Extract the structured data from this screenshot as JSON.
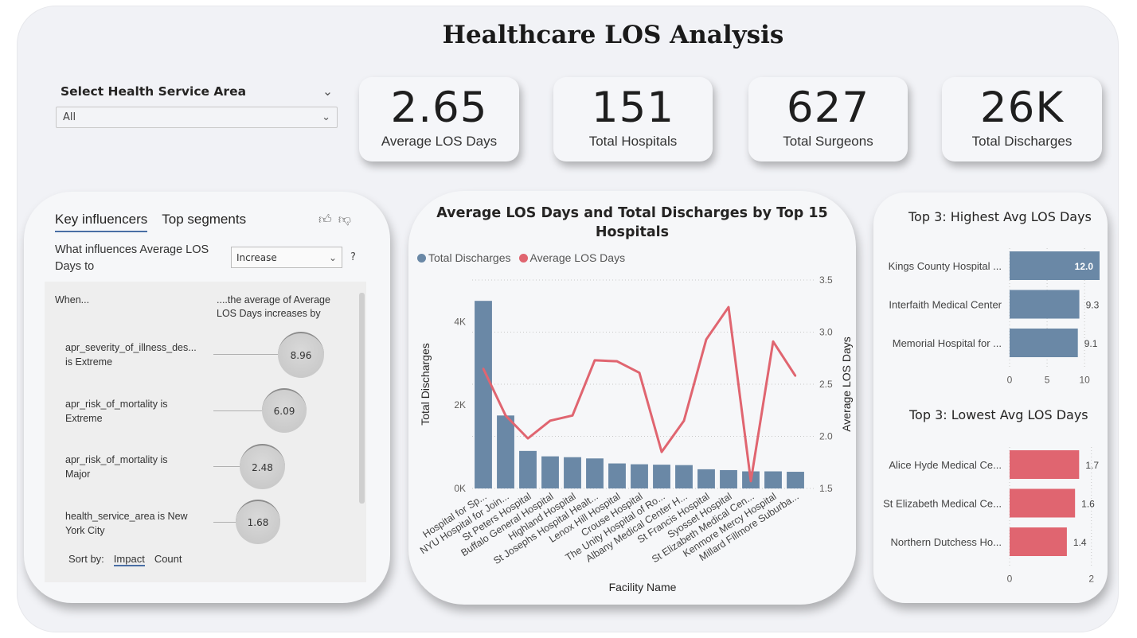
{
  "title": "Healthcare LOS Analysis",
  "slicer": {
    "label": "Select Health Service Area",
    "value": "All"
  },
  "kpis": [
    {
      "value": "2.65",
      "label": "Average LOS Days"
    },
    {
      "value": "151",
      "label": "Total Hospitals"
    },
    {
      "value": "627",
      "label": "Total Surgeons"
    },
    {
      "value": "26K",
      "label": "Total Discharges"
    }
  ],
  "key_influencers": {
    "tab_active": "Key influencers",
    "tab_other": "Top segments",
    "question": "What influences Average LOS Days to",
    "dropdown_value": "Increase",
    "help": "?",
    "col_when": "When...",
    "col_avg": "....the average of Average LOS Days increases by",
    "rows": [
      {
        "line1": "apr_severity_of_illness_des...",
        "line2": "is Extreme",
        "value": "8.96"
      },
      {
        "line1": "apr_risk_of_mortality is",
        "line2": "Extreme",
        "value": "6.09"
      },
      {
        "line1": "apr_risk_of_mortality is",
        "line2": "Major",
        "value": "2.48"
      },
      {
        "line1": "health_service_area is New",
        "line2": "York City",
        "value": "1.68"
      }
    ],
    "sort_label": "Sort by:",
    "sort_impact": "Impact",
    "sort_count": "Count"
  },
  "colors": {
    "bar": "#6a88a6",
    "line": "#e06570",
    "low_bar": "#e06570"
  },
  "chart_data": [
    {
      "type": "bar",
      "title": "Average LOS Days and Total Discharges by Top 15 Hospitals",
      "xlabel": "Facility Name",
      "ylabel": "Total Discharges",
      "y2label": "Average LOS Days",
      "legend": "top-left",
      "categories": [
        "Hospital for Sp...",
        "NYU Hospital for Join...",
        "St Peters Hospital",
        "Buffalo General Hospital",
        "Highland Hospital",
        "St Josephs Hospital Healt...",
        "Lenox Hill Hospital",
        "Crouse Hospital",
        "The Unity Hospital of Ro...",
        "Albany Medical Center H...",
        "St Francis Hospital",
        "Syosset Hospital",
        "St Elizabeth Medical Cen...",
        "Kenmore Mercy Hospital",
        "Millard Fillmore Suburba..."
      ],
      "series": [
        {
          "name": "Total Discharges",
          "type": "bar",
          "axis": "left",
          "values": [
            4500,
            1750,
            900,
            770,
            750,
            720,
            600,
            580,
            570,
            560,
            460,
            440,
            410,
            410,
            400
          ]
        },
        {
          "name": "Average LOS Days",
          "type": "line",
          "axis": "right",
          "values": [
            2.65,
            2.2,
            1.98,
            2.15,
            2.2,
            2.73,
            2.72,
            2.61,
            1.85,
            2.15,
            2.93,
            3.24,
            1.57,
            2.91,
            2.58
          ]
        }
      ],
      "yticks": [
        "0K",
        "2K",
        "4K"
      ],
      "ylim": [
        0,
        5000
      ],
      "y2ticks": [
        "1.5",
        "2.0",
        "2.5",
        "3.0",
        "3.5"
      ],
      "y2lim": [
        1.5,
        3.5
      ]
    },
    {
      "type": "bar",
      "title": "Top 3: Highest Avg LOS Days",
      "orientation": "horizontal",
      "categories": [
        "Kings County Hospital ...",
        "Interfaith Medical Center",
        "Memorial Hospital for ..."
      ],
      "values": [
        12.0,
        9.3,
        9.1
      ],
      "labels": [
        "12.0",
        "9.3",
        "9.1"
      ],
      "xticks": [
        "0",
        "5",
        "10"
      ],
      "xlim": [
        0,
        12
      ]
    },
    {
      "type": "bar",
      "title": "Top 3: Lowest Avg LOS Days",
      "orientation": "horizontal",
      "categories": [
        "Alice Hyde Medical Ce...",
        "St Elizabeth Medical Ce...",
        "Northern Dutchess Ho..."
      ],
      "values": [
        1.7,
        1.6,
        1.4
      ],
      "labels": [
        "1.7",
        "1.6",
        "1.4"
      ],
      "xticks": [
        "0",
        "2"
      ],
      "xlim": [
        0,
        2.2
      ]
    }
  ]
}
